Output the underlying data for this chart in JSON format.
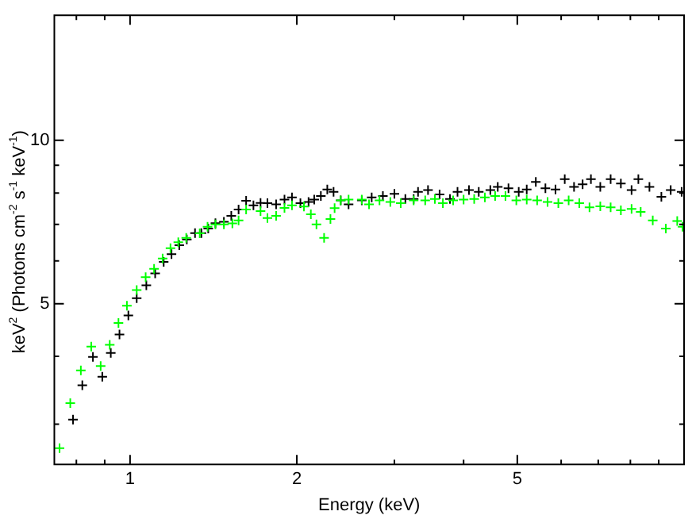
{
  "chart_data": {
    "type": "scatter",
    "xlabel": "Energy (keV)",
    "ylabel": "keV$^{2}$ (Photons cm$^{-2}$ s$^{-1}$ keV$^{-1}$)",
    "log": "xy",
    "marker": "cross",
    "xlim": [
      0.73,
      10
    ],
    "ylim": [
      2.53,
      17
    ],
    "xticks": [
      {
        "value": 0.8,
        "label": null
      },
      {
        "value": 0.9,
        "label": null
      },
      1,
      2,
      {
        "value": 3,
        "label": null
      },
      {
        "value": 4,
        "label": null
      },
      5,
      {
        "value": 6,
        "label": null
      },
      {
        "value": 7,
        "label": null
      },
      {
        "value": 8,
        "label": null
      },
      {
        "value": 9,
        "label": null
      }
    ],
    "yticks": [
      {
        "value": 3,
        "label": null
      },
      {
        "value": 4,
        "label": null
      },
      5,
      {
        "value": 6,
        "label": null
      },
      {
        "value": 7,
        "label": null
      },
      {
        "value": 8,
        "label": null
      },
      {
        "value": 9,
        "label": null
      },
      10
    ],
    "series": [
      {
        "color": "#00ff00",
        "x": [
          0.746,
          0.78,
          0.815,
          0.851,
          0.885,
          0.919,
          0.953,
          0.987,
          1.028,
          1.067,
          1.105,
          1.145,
          1.183,
          1.222,
          1.263,
          1.336,
          1.38,
          1.426,
          1.477,
          1.53,
          1.57,
          1.62,
          1.72,
          1.77,
          1.835,
          1.9,
          1.96,
          2.06,
          2.12,
          2.17,
          2.24,
          2.3,
          2.34,
          2.4,
          2.48,
          2.62,
          2.7,
          2.82,
          2.95,
          3.08,
          3.25,
          3.41,
          3.55,
          3.67,
          3.83,
          4.0,
          4.18,
          4.37,
          4.56,
          4.76,
          4.98,
          5.2,
          5.43,
          5.67,
          5.93,
          6.19,
          6.47,
          6.75,
          7.06,
          7.37,
          7.69,
          8.04,
          8.35,
          8.78,
          9.27,
          9.72,
          9.94
        ],
        "values": [
          2.71,
          3.28,
          3.77,
          4.17,
          3.84,
          4.2,
          4.61,
          4.96,
          5.3,
          5.6,
          5.8,
          6.06,
          6.33,
          6.49,
          6.61,
          6.74,
          6.93,
          7.0,
          7.0,
          7.03,
          7.12,
          7.46,
          7.41,
          7.19,
          7.26,
          7.51,
          7.59,
          7.55,
          7.31,
          7.0,
          6.61,
          7.16,
          7.5,
          7.75,
          7.78,
          7.78,
          7.62,
          7.75,
          7.7,
          7.66,
          7.75,
          7.75,
          7.8,
          7.66,
          7.75,
          7.78,
          7.8,
          7.85,
          7.9,
          7.9,
          7.75,
          7.78,
          7.75,
          7.7,
          7.66,
          7.75,
          7.66,
          7.53,
          7.56,
          7.53,
          7.43,
          7.48,
          7.38,
          7.12,
          6.88,
          7.1,
          6.93
        ]
      },
      {
        "color": "#000000",
        "x": [
          0.789,
          0.82,
          0.857,
          0.891,
          0.923,
          0.957,
          0.993,
          1.028,
          1.07,
          1.11,
          1.15,
          1.188,
          1.227,
          1.266,
          1.31,
          1.345,
          1.384,
          1.426,
          1.477,
          1.523,
          1.57,
          1.62,
          1.67,
          1.72,
          1.77,
          1.835,
          1.9,
          1.96,
          2.03,
          2.1,
          2.15,
          2.21,
          2.27,
          2.33,
          2.4,
          2.48,
          2.62,
          2.73,
          2.86,
          3.0,
          3.14,
          3.25,
          3.31,
          3.45,
          3.62,
          3.78,
          3.9,
          4.09,
          4.26,
          4.47,
          4.61,
          4.82,
          5.03,
          5.2,
          5.4,
          5.62,
          5.86,
          6.09,
          6.33,
          6.56,
          6.79,
          7.06,
          7.37,
          7.69,
          8.04,
          8.27,
          8.66,
          9.1,
          9.46,
          9.9
        ],
        "values": [
          3.06,
          3.54,
          3.99,
          3.67,
          4.06,
          4.39,
          4.76,
          5.12,
          5.41,
          5.69,
          5.97,
          6.17,
          6.41,
          6.57,
          6.75,
          6.75,
          6.88,
          7.04,
          7.08,
          7.26,
          7.46,
          7.74,
          7.59,
          7.67,
          7.66,
          7.62,
          7.78,
          7.85,
          7.66,
          7.7,
          7.78,
          7.9,
          8.12,
          8.04,
          7.75,
          7.62,
          7.75,
          7.85,
          7.9,
          7.97,
          7.8,
          7.8,
          8.04,
          8.1,
          7.95,
          7.8,
          8.04,
          8.1,
          8.04,
          8.1,
          8.21,
          8.16,
          8.04,
          8.12,
          8.38,
          8.16,
          8.12,
          8.48,
          8.21,
          8.3,
          8.48,
          8.21,
          8.48,
          8.33,
          8.1,
          8.48,
          8.21,
          7.87,
          8.1,
          8.04
        ]
      }
    ]
  }
}
